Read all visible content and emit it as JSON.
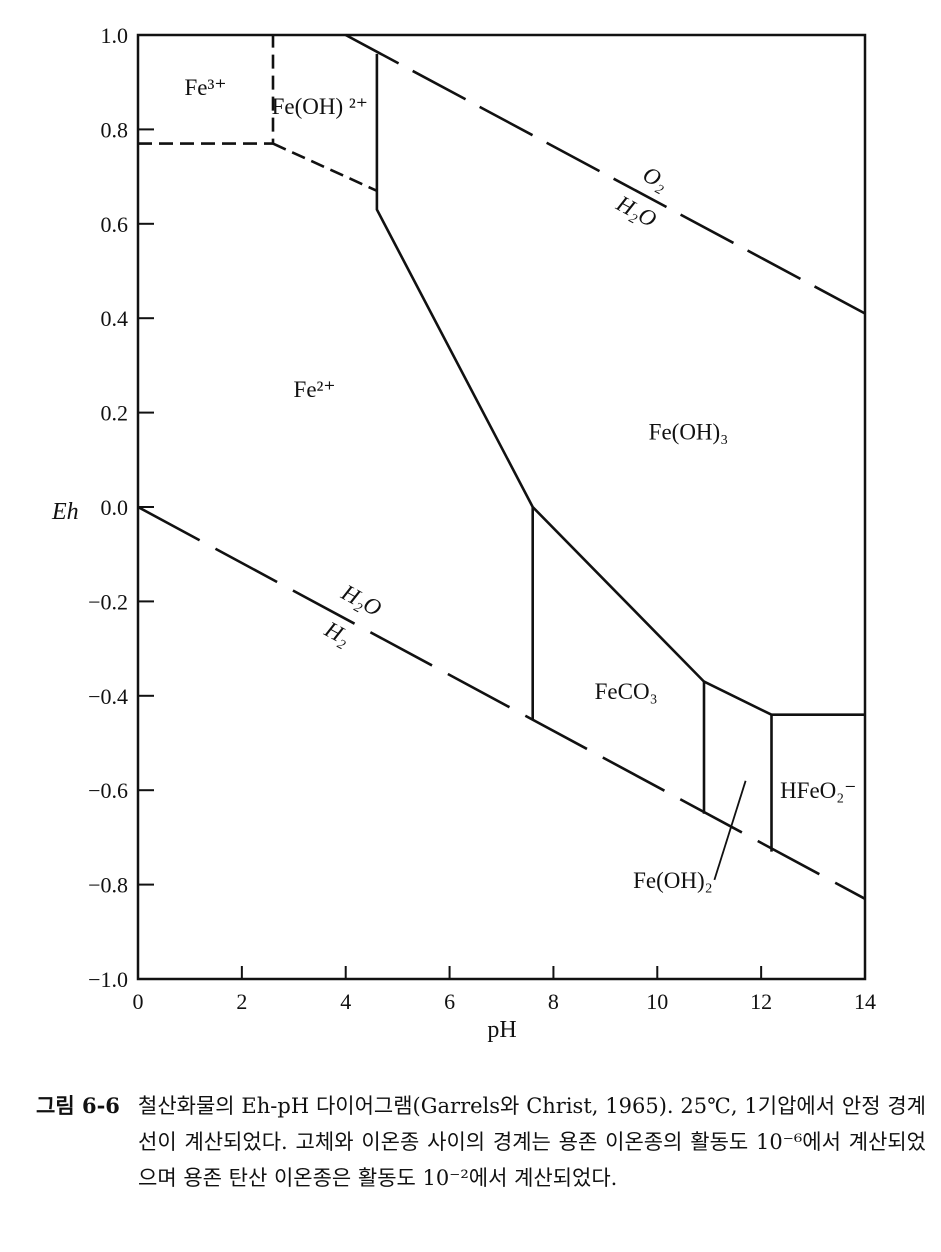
{
  "chart_data": {
    "type": "phase-diagram",
    "xlabel": "pH",
    "ylabel": "Eh",
    "xlim": [
      0,
      14
    ],
    "ylim": [
      -1.0,
      1.0
    ],
    "x_ticks": [
      "0",
      "2",
      "4",
      "6",
      "8",
      "10",
      "12",
      "14"
    ],
    "y_ticks": [
      "1.0",
      "0.8",
      "0.6",
      "0.4",
      "0.2",
      "0.0",
      "−0.2",
      "−0.4",
      "−0.6",
      "−0.8",
      "−1.0"
    ],
    "regions": [
      {
        "label": "Fe³⁺",
        "x": 1.3,
        "y": 0.89
      },
      {
        "label": "Fe(OH) ²⁺",
        "x": 3.5,
        "y": 0.85
      },
      {
        "label": "Fe²⁺",
        "x": 3.4,
        "y": 0.25
      },
      {
        "label": "Fe(OH)₃",
        "x": 10.6,
        "y": 0.16
      },
      {
        "label": "FeCO₃",
        "x": 9.4,
        "y": -0.39
      },
      {
        "label": "HFeO₂⁻",
        "x": 13.1,
        "y": -0.6
      },
      {
        "label": "Fe(OH)₂",
        "x": 10.3,
        "y": -0.79
      }
    ],
    "water_labels": [
      {
        "upper": "O₂",
        "lower": "H₂O"
      },
      {
        "upper": "H₂O",
        "lower": "H₂"
      }
    ],
    "boundaries": {
      "solid": [
        [
          [
            4.6,
            0.96
          ],
          [
            4.6,
            0.63
          ],
          [
            7.6,
            0.0
          ],
          [
            10.9,
            -0.37
          ],
          [
            12.2,
            -0.44
          ],
          [
            14.0,
            -0.44
          ]
        ],
        [
          [
            7.6,
            0.0
          ],
          [
            7.6,
            -0.45
          ]
        ],
        [
          [
            10.9,
            -0.37
          ],
          [
            10.9,
            -0.65
          ]
        ],
        [
          [
            12.2,
            -0.44
          ],
          [
            12.2,
            -0.73
          ]
        ]
      ],
      "dashed": [
        [
          [
            0.0,
            0.77
          ],
          [
            2.6,
            0.77
          ],
          [
            2.6,
            1.0
          ]
        ],
        [
          [
            2.6,
            0.77
          ],
          [
            4.6,
            0.67
          ]
        ]
      ],
      "water_upper": [
        [
          4.0,
          1.0
        ],
        [
          14.0,
          0.41
        ]
      ],
      "water_lower": [
        [
          0.0,
          0.0
        ],
        [
          14.0,
          -0.83
        ]
      ],
      "leader": [
        [
          11.7,
          -0.58
        ],
        [
          11.1,
          -0.79
        ]
      ]
    }
  },
  "caption": {
    "label": "그림 6-6",
    "text": "철산화물의 Eh-pH 다이어그램(Garrels와 Christ, 1965). 25℃, 1기압에서 안정 경계선이 계산되었다. 고체와 이온종 사이의 경계는 용존 이온종의 활동도 10⁻⁶에서 계산되었으며 용존 탄산 이온종은 활동도 10⁻²에서 계산되었다."
  }
}
